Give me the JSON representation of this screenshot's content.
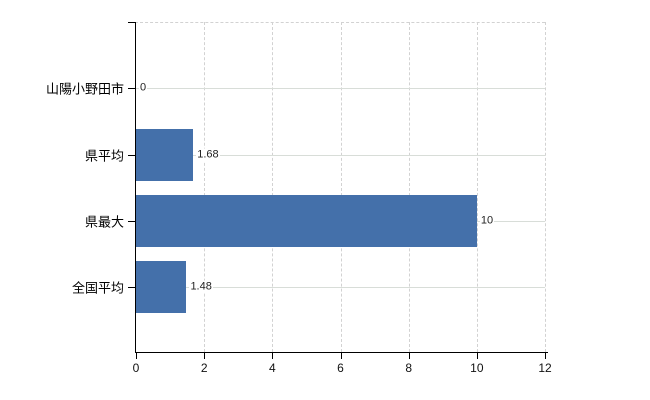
{
  "chart_data": {
    "type": "bar",
    "orientation": "horizontal",
    "categories": [
      "山陽小野田市",
      "県平均",
      "県最大",
      "全国平均"
    ],
    "values": [
      0,
      1.68,
      10,
      1.48
    ],
    "value_labels": [
      "0",
      "1.68",
      "10",
      "1.48"
    ],
    "xlim": [
      0,
      12
    ],
    "xticks": [
      0,
      2,
      4,
      6,
      8,
      10,
      12
    ],
    "xtick_labels": [
      "0",
      "2",
      "4",
      "6",
      "8",
      "10",
      "12"
    ],
    "grid": "on",
    "legend": "none",
    "colors": {
      "bar": "#4470aa",
      "axis": "#000000",
      "grid_vertical": "#d2d2d2",
      "grid_horizontal": "#d8ddd8",
      "text": "#000000"
    }
  }
}
